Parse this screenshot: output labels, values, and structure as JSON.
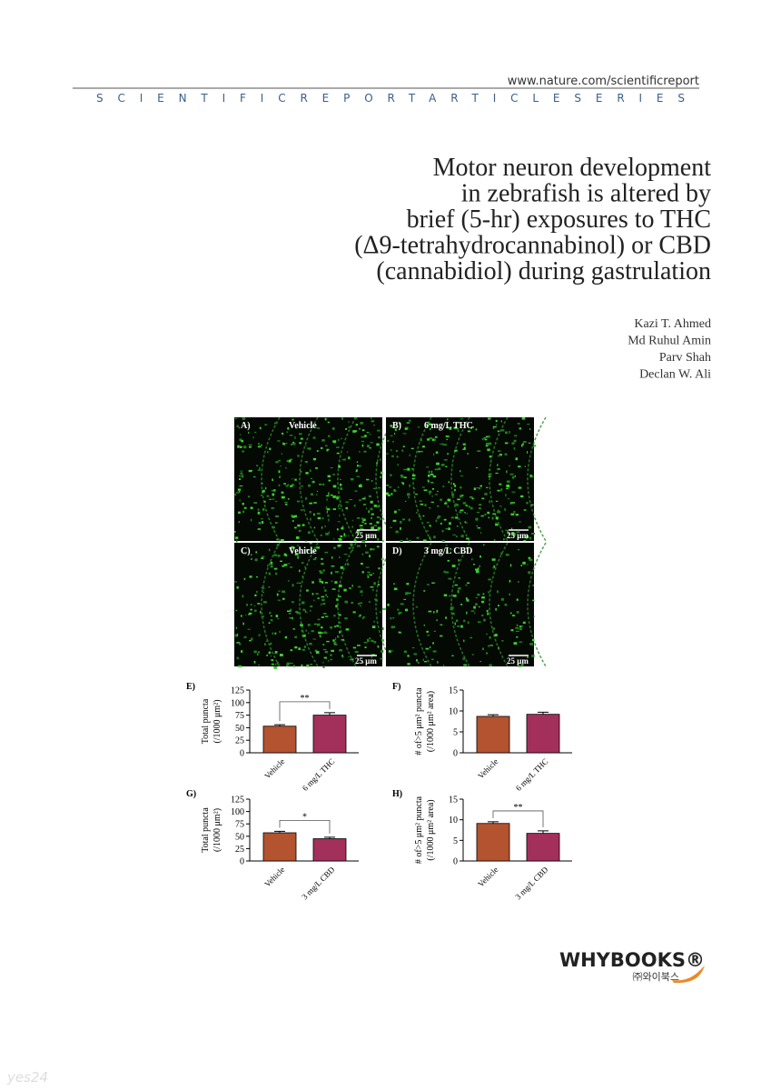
{
  "header": {
    "url": "www.nature.com/scientificreport",
    "series": "SCIENTIFICREPORTARTICLESERIES"
  },
  "title": [
    "Motor neuron development",
    "in zebrafish is altered by",
    "brief (5-hr) exposures to THC",
    "(Δ9-tetrahydrocannabinol) or CBD",
    "(cannabidiol) during gastrulation"
  ],
  "authors": [
    "Kazi T. Ahmed",
    "Md Ruhul Amin",
    "Parv Shah",
    "Declan W. Ali"
  ],
  "figure": {
    "panels": [
      {
        "label": "A)",
        "title": "Vehicle",
        "scale": "25 μm"
      },
      {
        "label": "B)",
        "title": "6 mg/L THC",
        "scale": "25 μm"
      },
      {
        "label": "C)",
        "title": "Vehicle",
        "scale": "25 μm"
      },
      {
        "label": "D)",
        "title": "3 mg/L CBD",
        "scale": "25 μm"
      }
    ]
  },
  "chart_data": [
    {
      "type": "bar",
      "panel": "E)",
      "ylabel": [
        "Total puncta",
        "(/1000 μm²)"
      ],
      "categories": [
        "Vehicle",
        "6 mg/L THC"
      ],
      "values": [
        53,
        75
      ],
      "errors": [
        3,
        5
      ],
      "colors": [
        "#b4532f",
        "#a32f5b"
      ],
      "ylim": [
        0,
        125
      ],
      "yticks": [
        0,
        25,
        50,
        75,
        100,
        125
      ],
      "significance": "**"
    },
    {
      "type": "bar",
      "panel": "F)",
      "ylabel": [
        "# of>5 μm² puncta",
        "(/1000 μm² area)"
      ],
      "categories": [
        "Vehicle",
        "6 mg/L THC"
      ],
      "values": [
        8.7,
        9.2
      ],
      "errors": [
        0.4,
        0.5
      ],
      "colors": [
        "#b4532f",
        "#a32f5b"
      ],
      "ylim": [
        0,
        15
      ],
      "yticks": [
        0,
        5,
        10,
        15
      ]
    },
    {
      "type": "bar",
      "panel": "G)",
      "ylabel": [
        "Total puncta",
        "(/1000 μm²)"
      ],
      "categories": [
        "Vehicle",
        "3 mg/L CBD"
      ],
      "values": [
        57,
        45
      ],
      "errors": [
        3,
        3
      ],
      "colors": [
        "#b4532f",
        "#a32f5b"
      ],
      "ylim": [
        0,
        125
      ],
      "yticks": [
        0,
        25,
        50,
        75,
        100,
        125
      ],
      "significance": "*"
    },
    {
      "type": "bar",
      "panel": "H)",
      "ylabel": [
        "# of>5 μm² puncta",
        "(/1000 μm² area)"
      ],
      "categories": [
        "Vehicle",
        "3 mg/L CBD"
      ],
      "values": [
        9.1,
        6.7
      ],
      "errors": [
        0.4,
        0.6
      ],
      "colors": [
        "#b4532f",
        "#a32f5b"
      ],
      "ylim": [
        0,
        15
      ],
      "yticks": [
        0,
        5,
        10,
        15
      ],
      "significance": "**"
    }
  ],
  "publisher": {
    "name": "WHYBOOKS®",
    "korean": "㈜와이북스"
  },
  "watermark": "yes24"
}
